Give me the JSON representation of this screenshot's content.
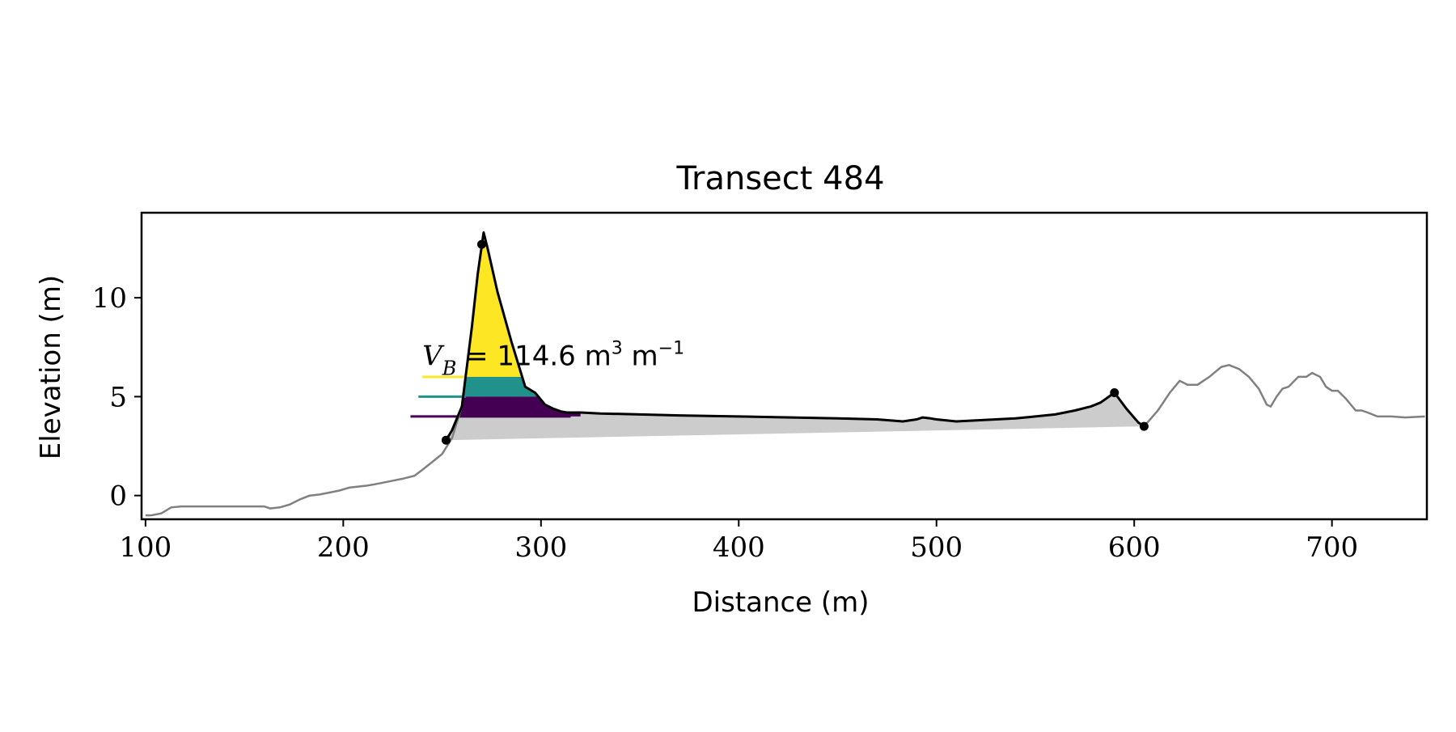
{
  "chart_data": {
    "type": "area",
    "title": "Transect 484",
    "xlabel": "Distance (m)",
    "ylabel": "Elevation (m)",
    "xlim": [
      98,
      748
    ],
    "ylim": [
      -1.2,
      14.3
    ],
    "xticks": [
      100,
      200,
      300,
      400,
      500,
      600,
      700
    ],
    "yticks": [
      0,
      5,
      10
    ],
    "grid": false,
    "annotation": {
      "symbol": "V",
      "subscript": "B",
      "value_text": "= 114.6",
      "units": "m",
      "units_sup": "3",
      "per": "m",
      "per_sup": "−1",
      "x": 240,
      "y": 6.6
    },
    "series": [
      {
        "role": "full-profile",
        "color": "#808080",
        "x": [
          100,
          103,
          108,
          113,
          118,
          121,
          130,
          140,
          150,
          160,
          163,
          168,
          173,
          178,
          183,
          188,
          193,
          198,
          203,
          207,
          212,
          215,
          220,
          225,
          230,
          236,
          240,
          245,
          250,
          255,
          260,
          265,
          268,
          271,
          273,
          278,
          285,
          292,
          297,
          302,
          306,
          310,
          313,
          320,
          330,
          350,
          370,
          400,
          450,
          470,
          483,
          490,
          493,
          497,
          500,
          505,
          510,
          520,
          540,
          560,
          570,
          578,
          583,
          590,
          596,
          602,
          605,
          612,
          618,
          623,
          627,
          632,
          638,
          644,
          648,
          653,
          658,
          663,
          667,
          669,
          672,
          675,
          678,
          683,
          687,
          690,
          694,
          697,
          700,
          703,
          707,
          712,
          715,
          718,
          723,
          730,
          737,
          747
        ],
        "y": [
          -1.0,
          -1.0,
          -0.9,
          -0.6,
          -0.55,
          -0.55,
          -0.55,
          -0.55,
          -0.55,
          -0.55,
          -0.65,
          -0.6,
          -0.45,
          -0.2,
          0.0,
          0.05,
          0.15,
          0.25,
          0.4,
          0.45,
          0.5,
          0.55,
          0.65,
          0.75,
          0.85,
          1.0,
          1.3,
          1.7,
          2.1,
          2.9,
          4.5,
          8.5,
          11.2,
          13.3,
          12.5,
          10.3,
          7.8,
          5.5,
          5.2,
          4.6,
          4.4,
          4.25,
          4.2,
          4.2,
          4.15,
          4.1,
          4.05,
          4.0,
          3.9,
          3.85,
          3.75,
          3.85,
          3.95,
          3.9,
          3.85,
          3.8,
          3.75,
          3.8,
          3.9,
          4.1,
          4.3,
          4.5,
          4.7,
          5.2,
          4.4,
          3.7,
          3.5,
          4.3,
          5.2,
          5.8,
          5.6,
          5.6,
          6.0,
          6.5,
          6.6,
          6.4,
          6.0,
          5.4,
          4.6,
          4.5,
          5.0,
          5.4,
          5.5,
          6.0,
          6.0,
          6.2,
          6.0,
          5.5,
          5.3,
          5.3,
          4.9,
          4.3,
          4.3,
          4.2,
          4.0,
          4.0,
          3.95,
          4.0
        ]
      },
      {
        "role": "dune-profile",
        "color": "#000000",
        "x": [
          252,
          255,
          260,
          265,
          268,
          271,
          273,
          278,
          285,
          292,
          297,
          302,
          306,
          310,
          313,
          320,
          330,
          350,
          370,
          400,
          450,
          470,
          483,
          490,
          493,
          497,
          500,
          505,
          510,
          520,
          540,
          560,
          570,
          578,
          583,
          590,
          596,
          602,
          605
        ],
        "y": [
          2.8,
          3.3,
          4.5,
          8.5,
          11.2,
          13.3,
          12.5,
          10.3,
          7.8,
          5.5,
          5.2,
          4.6,
          4.4,
          4.25,
          4.2,
          4.2,
          4.15,
          4.1,
          4.05,
          4.0,
          3.9,
          3.85,
          3.75,
          3.85,
          3.95,
          3.9,
          3.85,
          3.8,
          3.75,
          3.8,
          3.9,
          4.1,
          4.3,
          4.5,
          4.7,
          5.2,
          4.4,
          3.7,
          3.5
        ]
      }
    ],
    "base_line": {
      "x": [
        252,
        605
      ],
      "y": [
        2.8,
        3.5
      ],
      "fill": "#cccccc"
    },
    "markers": {
      "color": "#000000",
      "x": [
        252,
        270,
        590,
        605
      ],
      "y": [
        2.8,
        12.7,
        5.2,
        3.5
      ]
    },
    "layers": [
      {
        "color": "#fde725",
        "level": 6.0,
        "top": 13.3,
        "legend_x": [
          240,
          262
        ]
      },
      {
        "color": "#21918c",
        "level": 5.0,
        "top": 6.0,
        "legend_x": [
          238,
          262
        ]
      },
      {
        "color": "#440154",
        "level": 4.0,
        "top": 5.0,
        "legend_x": [
          234,
          315
        ]
      }
    ]
  }
}
